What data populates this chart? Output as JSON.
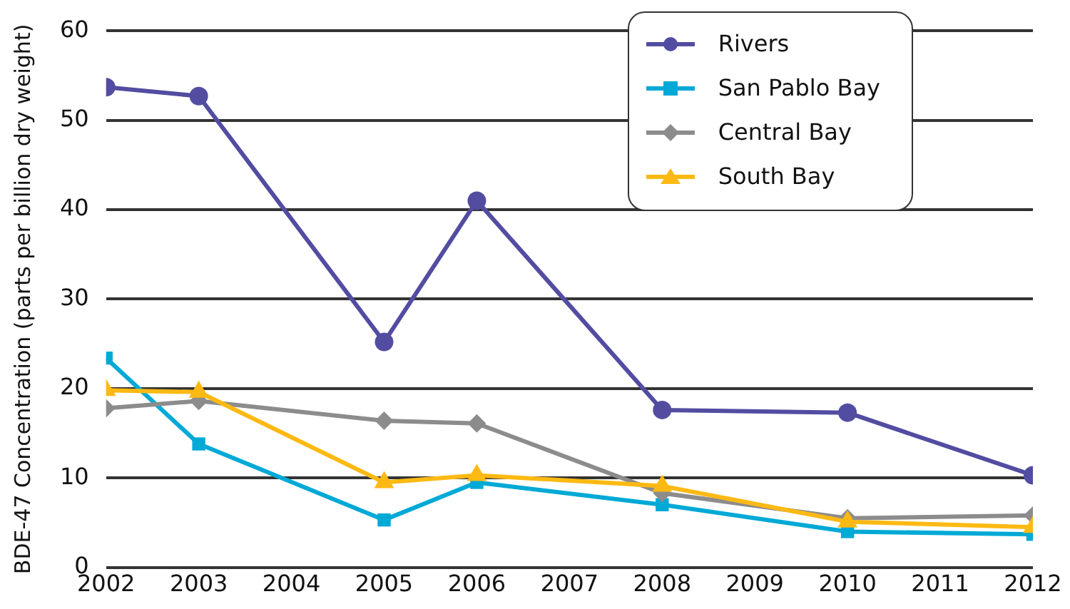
{
  "chart_data": {
    "type": "line",
    "ylabel": "BDE-47 Concentration (parts per billion dry weight)",
    "x": [
      2002,
      2003,
      2005,
      2006,
      2008,
      2010,
      2012
    ],
    "xlim": [
      2002,
      2012
    ],
    "xticks": [
      2002,
      2003,
      2004,
      2005,
      2006,
      2007,
      2008,
      2009,
      2010,
      2011,
      2012
    ],
    "ylim": [
      0,
      60
    ],
    "yticks": [
      0,
      10,
      20,
      30,
      40,
      50,
      60
    ],
    "grid": "y",
    "legend": "top right",
    "line_style": "solid",
    "series": [
      {
        "name": "Rivers",
        "color": "#524da1",
        "marker": "circle",
        "values": [
          53.7,
          52.7,
          25.2,
          41.0,
          17.6,
          17.3,
          10.3
        ]
      },
      {
        "name": "San Pablo Bay",
        "color": "#00a9d6",
        "marker": "square",
        "values": [
          23.4,
          13.8,
          5.3,
          9.5,
          7.0,
          4.0,
          3.7
        ]
      },
      {
        "name": "Central Bay",
        "color": "#8c8c8c",
        "marker": "diamond",
        "values": [
          17.8,
          18.6,
          16.4,
          16.1,
          8.3,
          5.5,
          5.8
        ]
      },
      {
        "name": "South Bay",
        "color": "#fdb913",
        "marker": "triangle",
        "values": [
          19.8,
          19.6,
          9.5,
          10.3,
          9.1,
          5.1,
          4.5
        ]
      }
    ]
  }
}
